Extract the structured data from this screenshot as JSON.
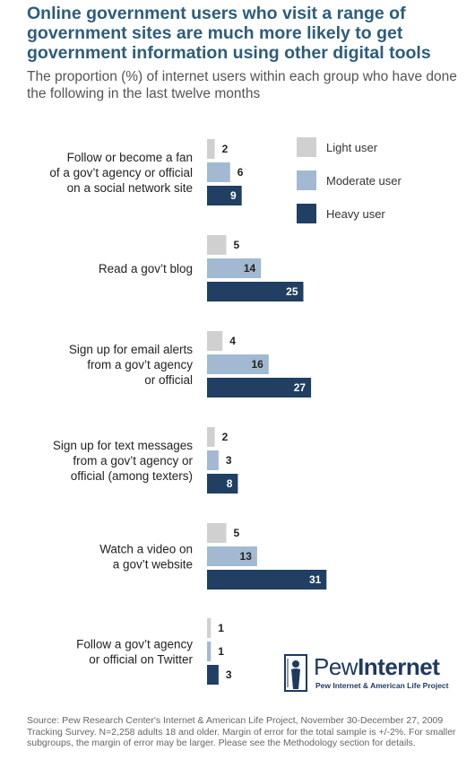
{
  "title": "Online government users who visit a range of government sites are much more likely to get government information using other digital tools",
  "subtitle": "The proportion (%) of internet users within each group who have done the following in the last twelve months",
  "chart_data": {
    "type": "bar",
    "orientation": "horizontal",
    "categories": [
      [
        "Follow or become a fan",
        "of a gov’t agency or official",
        "on a social network site"
      ],
      [
        "Read a gov’t blog"
      ],
      [
        "Sign up for email alerts",
        "from a gov’t agency",
        "or official"
      ],
      [
        "Sign up for text messages",
        "from a gov’t agency or",
        "official (among texters)"
      ],
      [
        "Watch a video on",
        "a gov’t website"
      ],
      [
        "Follow a gov’t agency",
        "or official on Twitter"
      ]
    ],
    "series": [
      {
        "name": "Light user",
        "color": "#d0d0d0",
        "label_color": "#222222",
        "values": [
          2,
          5,
          4,
          2,
          5,
          1
        ]
      },
      {
        "name": "Moderate user",
        "color": "#a3b9d1",
        "label_color": "#222222",
        "values": [
          6,
          14,
          16,
          3,
          13,
          1
        ]
      },
      {
        "name": "Heavy user",
        "color": "#203f63",
        "label_color": "#ffffff",
        "values": [
          9,
          25,
          27,
          8,
          31,
          3
        ]
      }
    ],
    "legend_position": "top-right",
    "grid": false
  },
  "logo": {
    "name_part1": "Pew",
    "name_part2": "Internet",
    "tagline": "Pew Internet & American Life Project"
  },
  "source": "Source: Pew Research Center's Internet & American Life Project, November 30-December 27, 2009 Tracking Survey. N=2,258 adults 18 and older. Margin of error for the total sample is +/-2%. For smaller subgroups, the margin of error may be larger. Please see the Methodology section for details."
}
